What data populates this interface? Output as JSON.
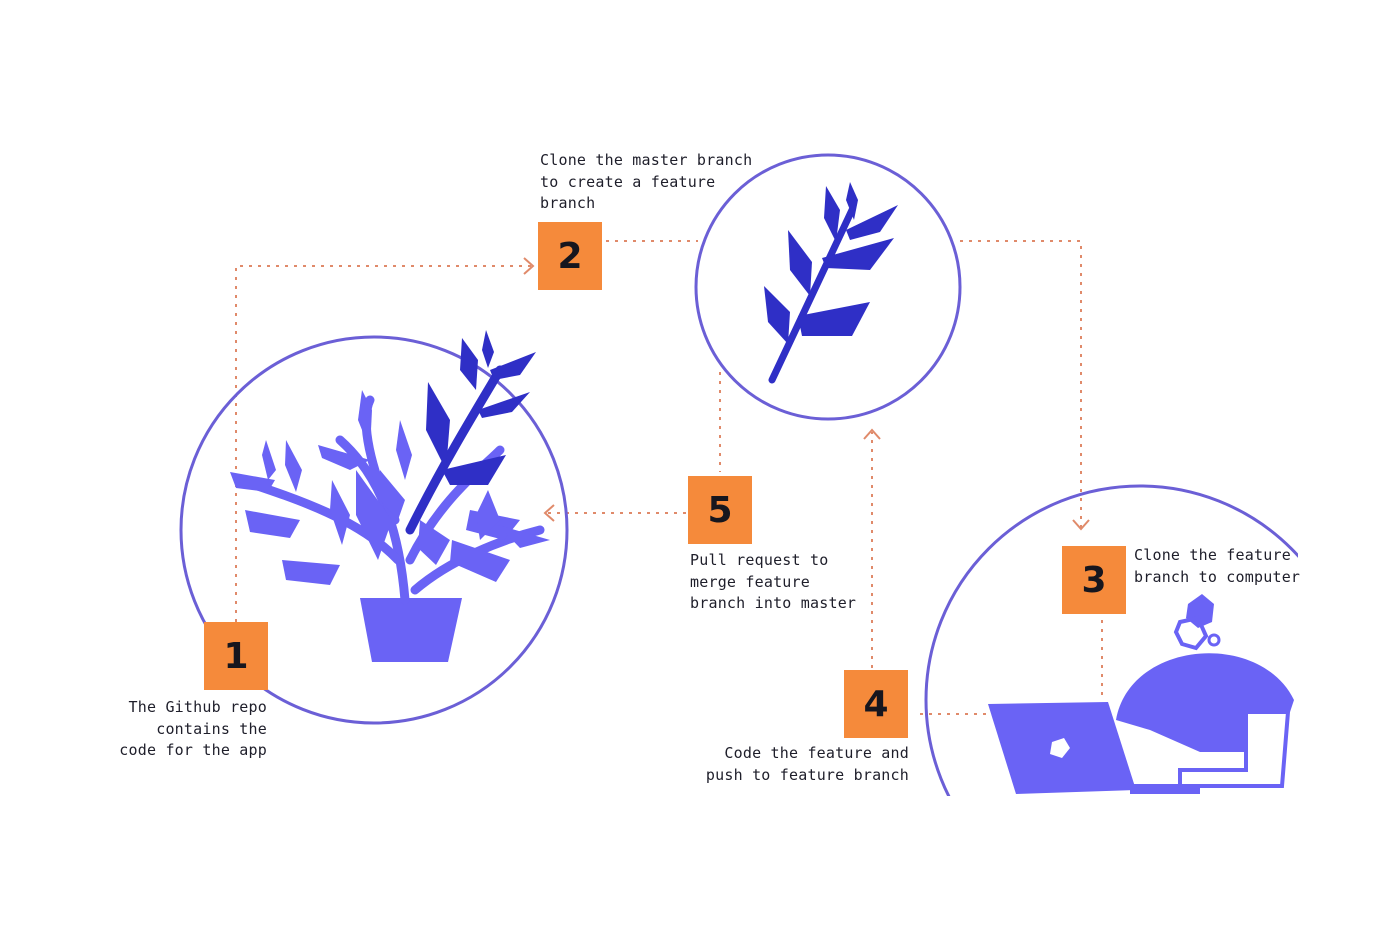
{
  "colors": {
    "accent": "#f58a3b",
    "circle": "#6b5fd6",
    "plant_light": "#6a63f5",
    "plant_dark": "#2f2fc6",
    "connector": "#e08a6a"
  },
  "steps": [
    {
      "number": "1",
      "caption": "The Github repo\ncontains the\ncode for the app"
    },
    {
      "number": "2",
      "caption": "Clone the master branch\nto create a feature\nbranch"
    },
    {
      "number": "3",
      "caption": "Clone the feature\nbranch to computer"
    },
    {
      "number": "4",
      "caption": "Code the feature and\npush to feature branch"
    },
    {
      "number": "5",
      "caption": "Pull request to\nmerge feature\nbranch into master"
    }
  ],
  "icons": [
    "potted-plant-icon",
    "branch-sprig-icon",
    "person-at-laptop-icon"
  ]
}
